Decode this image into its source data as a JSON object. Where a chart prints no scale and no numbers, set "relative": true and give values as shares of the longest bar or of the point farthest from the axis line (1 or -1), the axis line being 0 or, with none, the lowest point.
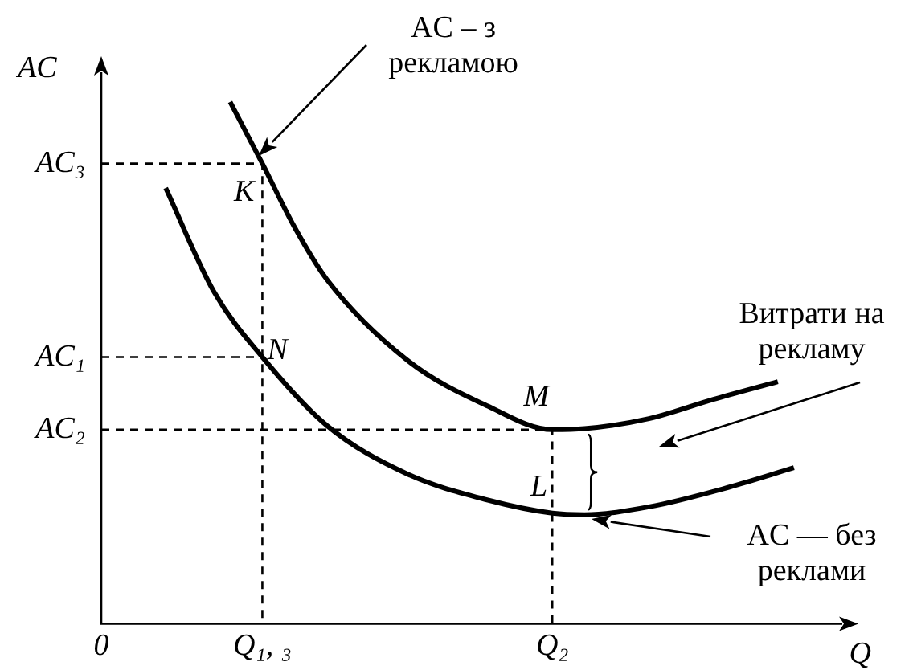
{
  "chart_data": {
    "type": "line",
    "relative": true,
    "xlabel": "Q",
    "ylabel": "AC",
    "categories": [
      "0",
      null,
      null,
      null,
      null,
      null,
      null,
      null,
      null,
      null,
      "Q₁, ₃",
      null,
      null,
      null,
      null,
      null,
      null,
      null,
      null,
      null,
      null,
      null,
      null,
      null,
      null,
      null,
      null,
      null,
      "Q₂",
      null,
      null,
      null,
      null,
      null,
      null,
      null,
      null,
      null,
      null,
      null,
      null,
      null,
      null,
      null,
      null,
      null,
      null,
      null
    ],
    "legend": false,
    "grid": false,
    "marker": "none",
    "line_style": "solid",
    "series": [
      {
        "color": "#000000",
        "values": [
          null,
          null,
          null,
          null,
          null,
          null,
          null,
          null,
          1.0,
          null,
          0.882,
          null,
          0.76,
          null,
          0.66,
          null,
          null,
          null,
          null,
          0.505,
          null,
          null,
          null,
          null,
          0.417,
          null,
          null,
          null,
          0.372,
          null,
          0.374,
          null,
          null,
          null,
          0.393,
          null,
          null,
          null,
          0.43,
          null,
          null,
          null,
          0.464,
          null,
          null,
          null,
          null,
          null
        ]
      },
      {
        "color": "#000000",
        "values": [
          null,
          null,
          null,
          null,
          0.835,
          null,
          null,
          0.636,
          null,
          null,
          0.511,
          null,
          null,
          null,
          0.38,
          null,
          null,
          null,
          null,
          0.287,
          null,
          null,
          null,
          null,
          0.237,
          null,
          null,
          null,
          0.212,
          null,
          0.209,
          null,
          null,
          null,
          0.224,
          null,
          null,
          null,
          null,
          0.262,
          null,
          null,
          null,
          0.299,
          null,
          null,
          null,
          null
        ]
      },
      {
        "color": "#000000",
        "line_style": "dashed",
        "x": [
          "0",
          "Q₁, ₃",
          "Q₁, ₃"
        ],
        "values": [
          0.882,
          0.882,
          0
        ]
      },
      {
        "color": "#000000",
        "line_style": "dashed",
        "x": [
          "0",
          "Q₁, ₃"
        ],
        "values": [
          0.511,
          0.511
        ]
      },
      {
        "color": "#000000",
        "line_style": "dashed",
        "x": [
          "0",
          "Q₂",
          "Q₂"
        ],
        "values": [
          0.372,
          0.372,
          0
        ]
      }
    ],
    "annotations": [
      {
        "text": "AC₃",
        "x": "0",
        "y": 0.882
      },
      {
        "text": "AC₁",
        "x": "0",
        "y": 0.511
      },
      {
        "text": "AC₂",
        "x": "0",
        "y": 0.372
      },
      {
        "text": "K",
        "x": "Q₁, ₃",
        "y": 0.882
      },
      {
        "text": "N",
        "x": "Q₁, ₃",
        "y": 0.511
      },
      {
        "text": "M",
        "x": "Q₂",
        "y": 0.372
      },
      {
        "text": "L",
        "x": "Q₂",
        "y": 0.212
      },
      "AC – з рекламою",
      "Витрати на рекламу",
      "AC — без реклами"
    ]
  }
}
